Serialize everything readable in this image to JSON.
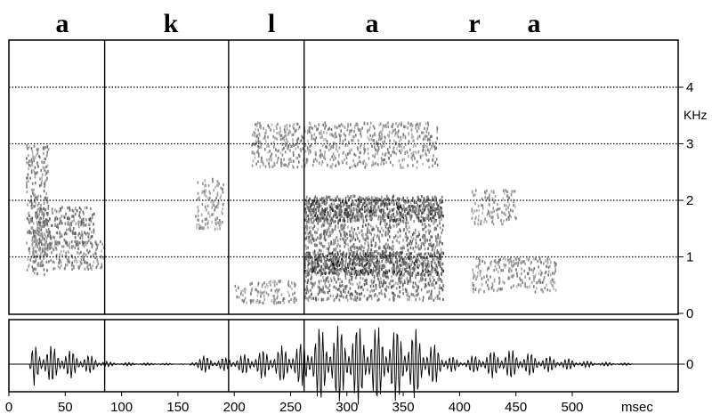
{
  "phoneme_labels": [
    "a",
    "k",
    "l",
    "a",
    "r",
    "a"
  ],
  "chart_data": [
    {
      "type": "heatmap",
      "title": "",
      "xlabel": "msec",
      "ylabel": "KHz",
      "xlim": [
        0,
        600
      ],
      "ylim": [
        0,
        4.7
      ],
      "y_ticks": [
        0,
        1,
        2,
        3,
        4
      ],
      "y_tick_labels": [
        "0",
        "1",
        "2",
        "3",
        "4"
      ],
      "grid": "dotted horizontal lines at 1, 2, 3, 4 kHz",
      "segment_boundaries_msec": [
        85,
        195,
        262
      ],
      "energy_regions": [
        {
          "t_start": 15,
          "t_end": 35,
          "f_start": 0.7,
          "f_end": 3.0,
          "level": 0.45
        },
        {
          "t_start": 20,
          "t_end": 75,
          "f_start": 1.2,
          "f_end": 1.9,
          "level": 0.55
        },
        {
          "t_start": 20,
          "t_end": 85,
          "f_start": 0.8,
          "f_end": 1.3,
          "level": 0.4
        },
        {
          "t_start": 165,
          "t_end": 190,
          "f_start": 1.5,
          "f_end": 2.4,
          "level": 0.3
        },
        {
          "t_start": 200,
          "t_end": 255,
          "f_start": 0.2,
          "f_end": 0.6,
          "level": 0.35
        },
        {
          "t_start": 215,
          "t_end": 380,
          "f_start": 2.6,
          "f_end": 3.4,
          "level": 0.35
        },
        {
          "t_start": 262,
          "t_end": 385,
          "f_start": 1.65,
          "f_end": 2.05,
          "level": 0.95
        },
        {
          "t_start": 262,
          "t_end": 385,
          "f_start": 0.7,
          "f_end": 1.1,
          "level": 1.0
        },
        {
          "t_start": 262,
          "t_end": 385,
          "f_start": 0.25,
          "f_end": 2.1,
          "level": 0.55
        },
        {
          "t_start": 410,
          "t_end": 450,
          "f_start": 1.6,
          "f_end": 2.2,
          "level": 0.3
        },
        {
          "t_start": 410,
          "t_end": 485,
          "f_start": 0.4,
          "f_end": 1.0,
          "level": 0.35
        }
      ]
    },
    {
      "type": "line",
      "title": "",
      "xlabel": "msec",
      "ylabel": "",
      "xlim": [
        0,
        600
      ],
      "x_ticks": [
        0,
        50,
        100,
        150,
        200,
        250,
        300,
        350,
        400,
        450,
        500
      ],
      "x_tick_labels": [
        "0",
        "50",
        "100",
        "150",
        "200",
        "250",
        "300",
        "350",
        "400",
        "450",
        "500"
      ],
      "y_ticks": [
        0
      ],
      "y_tick_labels": [
        "0"
      ],
      "segment_boundaries_msec": [
        85,
        195,
        262
      ],
      "amplitude_envelope": [
        {
          "t": 0,
          "a": 0.0
        },
        {
          "t": 18,
          "a": 0.0
        },
        {
          "t": 22,
          "a": 0.55
        },
        {
          "t": 40,
          "a": 0.45
        },
        {
          "t": 70,
          "a": 0.25
        },
        {
          "t": 90,
          "a": 0.05
        },
        {
          "t": 150,
          "a": 0.02
        },
        {
          "t": 160,
          "a": 0.0
        },
        {
          "t": 168,
          "a": 0.25
        },
        {
          "t": 185,
          "a": 0.15
        },
        {
          "t": 200,
          "a": 0.2
        },
        {
          "t": 230,
          "a": 0.4
        },
        {
          "t": 260,
          "a": 0.55
        },
        {
          "t": 275,
          "a": 0.95
        },
        {
          "t": 310,
          "a": 1.0
        },
        {
          "t": 360,
          "a": 0.9
        },
        {
          "t": 385,
          "a": 0.35
        },
        {
          "t": 400,
          "a": 0.1
        },
        {
          "t": 420,
          "a": 0.3
        },
        {
          "t": 440,
          "a": 0.4
        },
        {
          "t": 480,
          "a": 0.2
        },
        {
          "t": 520,
          "a": 0.06
        },
        {
          "t": 550,
          "a": 0.03
        },
        {
          "t": 560,
          "a": 0.0
        },
        {
          "t": 600,
          "a": 0.0
        }
      ]
    }
  ]
}
